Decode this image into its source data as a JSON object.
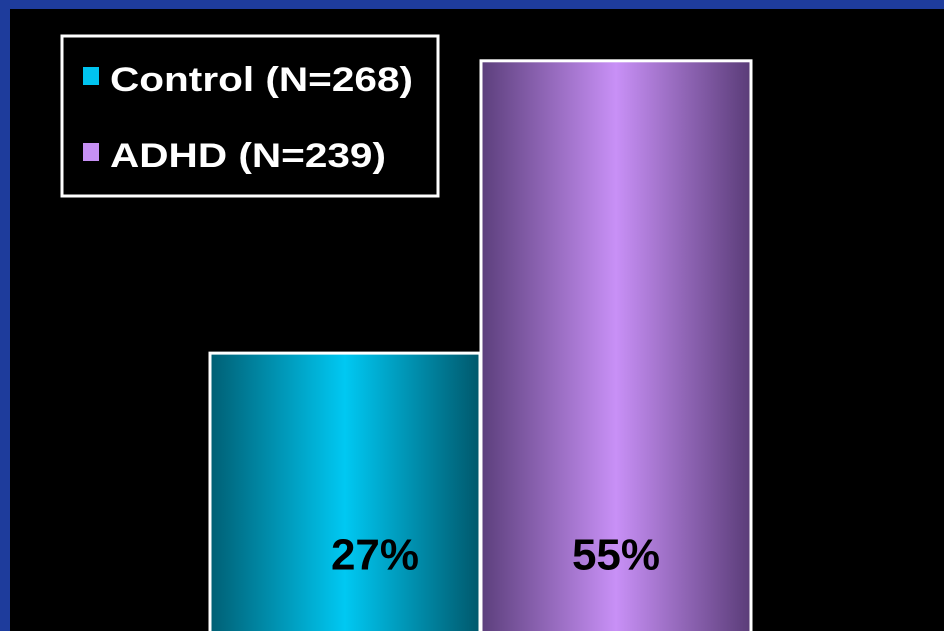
{
  "chart_data": {
    "type": "bar",
    "categories": [
      null
    ],
    "series": [
      {
        "name": "Control (N=268)",
        "color": "#00c4f0",
        "values": [
          27
        ],
        "value_labels": [
          "27%"
        ]
      },
      {
        "name": "ADHD (N=239)",
        "color": "#c690f4",
        "values": [
          55
        ],
        "value_labels": [
          "55%"
        ]
      }
    ],
    "legend": "upper left"
  }
}
